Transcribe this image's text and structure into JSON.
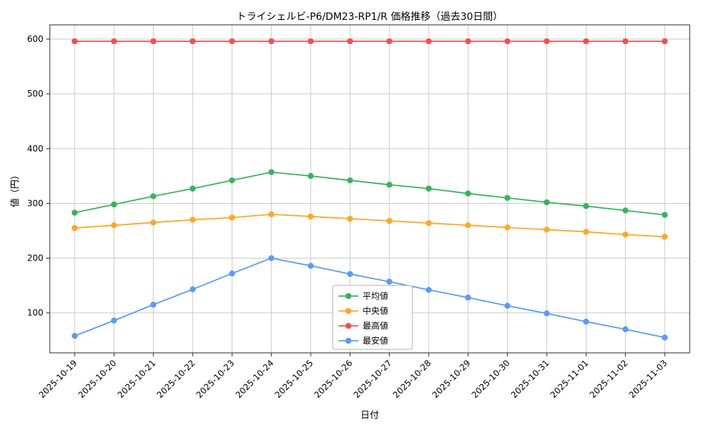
{
  "chart_data": {
    "type": "line",
    "title": "トライシェルビ-P6/DM23-RP1/R 価格推移（過去30日間）",
    "xlabel": "日付",
    "ylabel": "値（円）",
    "x": [
      "2025-10-19",
      "2025-10-20",
      "2025-10-21",
      "2025-10-22",
      "2025-10-23",
      "2025-10-24",
      "2025-10-25",
      "2025-10-26",
      "2025-10-27",
      "2025-10-28",
      "2025-10-29",
      "2025-10-30",
      "2025-10-31",
      "2025-11-01",
      "2025-11-02",
      "2025-11-03"
    ],
    "series": [
      {
        "id": "average",
        "name": "平均値",
        "color": "#35b55c",
        "values": [
          283,
          298,
          313,
          327,
          342,
          357,
          350,
          342,
          334,
          327,
          318,
          310,
          302,
          295,
          287,
          279
        ]
      },
      {
        "id": "median",
        "name": "中央値",
        "color": "#ffa726",
        "values": [
          255,
          260,
          265,
          270,
          274,
          280,
          276,
          272,
          268,
          264,
          260,
          256,
          252,
          248,
          243,
          239
        ]
      },
      {
        "id": "max",
        "name": "最高値",
        "color": "#ef5350",
        "values": [
          596,
          596,
          596,
          596,
          596,
          596,
          596,
          596,
          596,
          596,
          596,
          596,
          596,
          596,
          596,
          596
        ]
      },
      {
        "id": "min",
        "name": "最安値",
        "color": "#5b9bf5",
        "values": [
          58,
          86,
          115,
          143,
          172,
          200,
          186,
          171,
          157,
          142,
          128,
          113,
          99,
          84,
          70,
          55
        ]
      }
    ],
    "ylim": [
      27,
      626
    ],
    "yticks": [
      100,
      200,
      300,
      400,
      500,
      600
    ],
    "grid": true,
    "grid_color": "#c9c9c9",
    "axis_color": "#262626",
    "legend_position": "lower center",
    "background": "#ffffff"
  }
}
